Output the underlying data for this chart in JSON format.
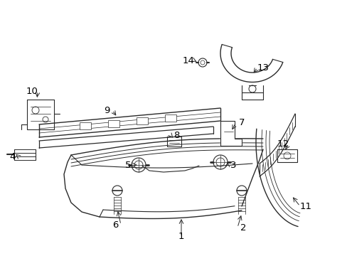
{
  "background_color": "#ffffff",
  "line_color": "#2a2a2a",
  "text_color": "#000000",
  "fig_width": 4.89,
  "fig_height": 3.6,
  "dpi": 100,
  "lw": 0.9
}
